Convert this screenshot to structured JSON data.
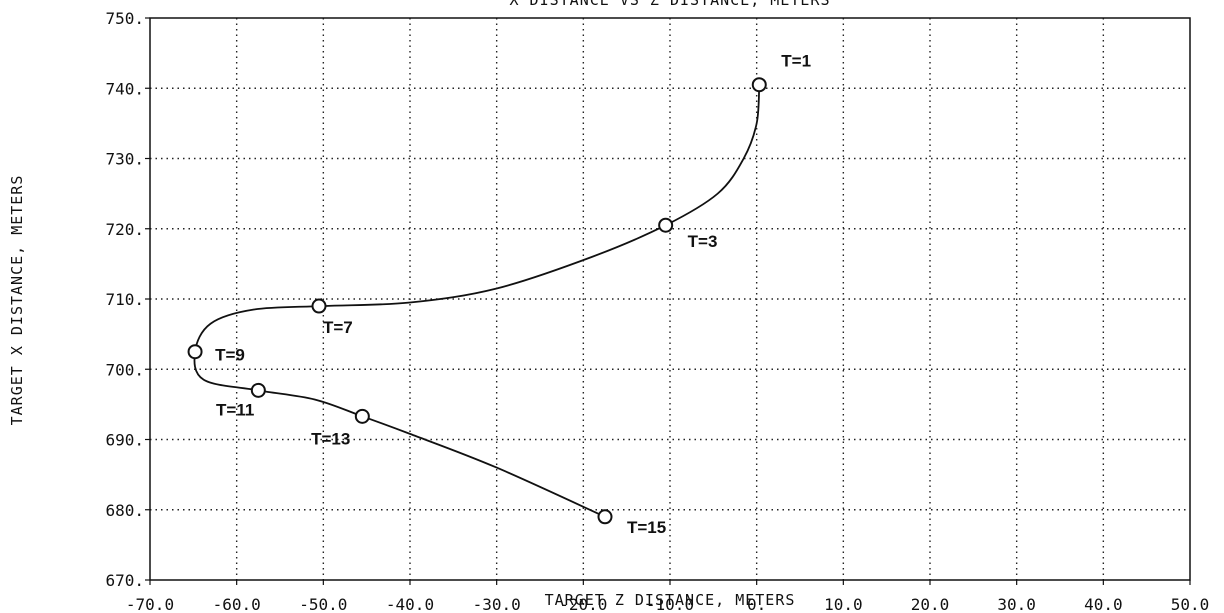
{
  "chart_data": {
    "type": "line",
    "title": "X DISTANCE VS Z DISTANCE, METERS",
    "xlabel": "TARGET Z DISTANCE, METERS",
    "ylabel": "TARGET X DISTANCE, METERS",
    "xlim": [
      -70,
      50
    ],
    "ylim": [
      670,
      750
    ],
    "grid": true,
    "x_ticks": [
      -70,
      -60,
      -50,
      -40,
      -30,
      -20,
      -10,
      0,
      10,
      20,
      30,
      40,
      50
    ],
    "x_tick_labels": [
      "-70.0",
      "-60.0",
      "-50.0",
      "-40.0",
      "-30.0",
      "-20.0",
      "-10.0",
      "0.",
      "10.0",
      "20.0",
      "30.0",
      "40.0",
      "50.0"
    ],
    "y_ticks": [
      670,
      680,
      690,
      700,
      710,
      720,
      730,
      740,
      750
    ],
    "y_tick_labels": [
      "670.",
      "680.",
      "690.",
      "700.",
      "710.",
      "720.",
      "730.",
      "740.",
      "750."
    ],
    "series": [
      {
        "x": [
          0.3,
          0.0,
          -1.5,
          -4.5,
          -10.5,
          -19,
          -30,
          -40,
          -50,
          -58,
          -63,
          -64.8,
          -63.8,
          -57.5,
          -51,
          -45.5,
          -40,
          -30,
          -17.5
        ],
        "y": [
          740.5,
          735,
          730,
          725,
          720.5,
          716,
          711.5,
          709.5,
          709,
          708.5,
          706.5,
          702.5,
          698.5,
          697,
          695.7,
          693.3,
          690.8,
          686,
          679
        ]
      }
    ],
    "markers": [
      {
        "label": "T=1",
        "x": 0.3,
        "y": 740.5
      },
      {
        "label": "T=3",
        "x": -10.5,
        "y": 720.5
      },
      {
        "label": "T=7",
        "x": -50.5,
        "y": 709
      },
      {
        "label": "T=9",
        "x": -64.8,
        "y": 702.5
      },
      {
        "label": "T=11",
        "x": -57.5,
        "y": 697
      },
      {
        "label": "T=13",
        "x": -45.5,
        "y": 693.3
      },
      {
        "label": "T=15",
        "x": -17.5,
        "y": 679
      }
    ]
  }
}
